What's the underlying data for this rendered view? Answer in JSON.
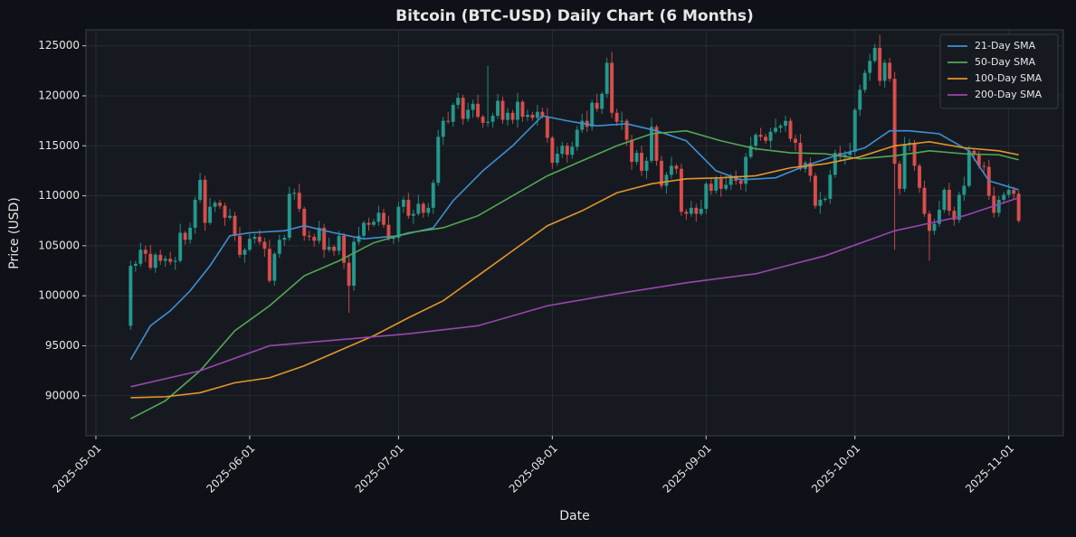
{
  "chart_data": {
    "type": "candlestick",
    "title": "Bitcoin (BTC-USD) Daily Chart (6 Months)",
    "x_label": "Date",
    "y_label": "Price (USD)",
    "x": [
      "2025-05-08",
      "2025-05-09",
      "2025-05-10",
      "2025-05-11",
      "2025-05-12",
      "2025-05-13",
      "2025-05-14",
      "2025-05-15",
      "2025-05-16",
      "2025-05-17",
      "2025-05-18",
      "2025-05-19",
      "2025-05-20",
      "2025-05-21",
      "2025-05-22",
      "2025-05-23",
      "2025-05-24",
      "2025-05-25",
      "2025-05-26",
      "2025-05-27",
      "2025-05-28",
      "2025-05-29",
      "2025-05-30",
      "2025-05-31",
      "2025-06-01",
      "2025-06-02",
      "2025-06-03",
      "2025-06-04",
      "2025-06-05",
      "2025-06-06",
      "2025-06-07",
      "2025-06-08",
      "2025-06-09",
      "2025-06-10",
      "2025-06-11",
      "2025-06-12",
      "2025-06-13",
      "2025-06-14",
      "2025-06-15",
      "2025-06-16",
      "2025-06-17",
      "2025-06-18",
      "2025-06-19",
      "2025-06-20",
      "2025-06-21",
      "2025-06-22",
      "2025-06-23",
      "2025-06-24",
      "2025-06-25",
      "2025-06-26",
      "2025-06-27",
      "2025-06-28",
      "2025-06-29",
      "2025-06-30",
      "2025-07-01",
      "2025-07-02",
      "2025-07-03",
      "2025-07-04",
      "2025-07-05",
      "2025-07-06",
      "2025-07-07",
      "2025-07-08",
      "2025-07-09",
      "2025-07-10",
      "2025-07-11",
      "2025-07-12",
      "2025-07-13",
      "2025-07-14",
      "2025-07-15",
      "2025-07-16",
      "2025-07-17",
      "2025-07-18",
      "2025-07-19",
      "2025-07-20",
      "2025-07-21",
      "2025-07-22",
      "2025-07-23",
      "2025-07-24",
      "2025-07-25",
      "2025-07-26",
      "2025-07-27",
      "2025-07-28",
      "2025-07-29",
      "2025-07-30",
      "2025-07-31",
      "2025-08-01",
      "2025-08-02",
      "2025-08-03",
      "2025-08-04",
      "2025-08-05",
      "2025-08-06",
      "2025-08-07",
      "2025-08-08",
      "2025-08-09",
      "2025-08-10",
      "2025-08-11",
      "2025-08-12",
      "2025-08-13",
      "2025-08-14",
      "2025-08-15",
      "2025-08-16",
      "2025-08-17",
      "2025-08-18",
      "2025-08-19",
      "2025-08-20",
      "2025-08-21",
      "2025-08-22",
      "2025-08-23",
      "2025-08-24",
      "2025-08-25",
      "2025-08-26",
      "2025-08-27",
      "2025-08-28",
      "2025-08-29",
      "2025-08-30",
      "2025-08-31",
      "2025-09-01",
      "2025-09-02",
      "2025-09-03",
      "2025-09-04",
      "2025-09-05",
      "2025-09-06",
      "2025-09-07",
      "2025-09-08",
      "2025-09-09",
      "2025-09-10",
      "2025-09-11",
      "2025-09-12",
      "2025-09-13",
      "2025-09-14",
      "2025-09-15",
      "2025-09-16",
      "2025-09-17",
      "2025-09-18",
      "2025-09-19",
      "2025-09-20",
      "2025-09-21",
      "2025-09-22",
      "2025-09-23",
      "2025-09-24",
      "2025-09-25",
      "2025-09-26",
      "2025-09-27",
      "2025-09-28",
      "2025-09-29",
      "2025-09-30",
      "2025-10-01",
      "2025-10-02",
      "2025-10-03",
      "2025-10-04",
      "2025-10-05",
      "2025-10-06",
      "2025-10-07",
      "2025-10-08",
      "2025-10-09",
      "2025-10-10",
      "2025-10-11",
      "2025-10-12",
      "2025-10-13",
      "2025-10-14",
      "2025-10-15",
      "2025-10-16",
      "2025-10-17",
      "2025-10-18",
      "2025-10-19",
      "2025-10-20",
      "2025-10-21",
      "2025-10-22",
      "2025-10-23",
      "2025-10-24",
      "2025-10-25",
      "2025-10-26",
      "2025-10-27",
      "2025-10-28",
      "2025-10-29",
      "2025-10-30",
      "2025-10-31",
      "2025-11-01",
      "2025-11-02",
      "2025-11-03"
    ],
    "open": [
      97000,
      103000,
      103200,
      104600,
      104200,
      102800,
      104100,
      103500,
      103700,
      103400,
      103500,
      106300,
      105600,
      106800,
      109600,
      111600,
      107300,
      108900,
      109300,
      109000,
      107800,
      108000,
      106000,
      104100,
      104600,
      105700,
      105900,
      105400,
      104700,
      101500,
      104200,
      105600,
      105800,
      110200,
      110300,
      108700,
      106000,
      105900,
      105500,
      106800,
      104600,
      104900,
      104500,
      106000,
      103300,
      101000,
      105400,
      106000,
      107300,
      107100,
      107400,
      108300,
      107100,
      105700,
      105800,
      108900,
      109600,
      108000,
      108200,
      109200,
      108300,
      108800,
      111300,
      115900,
      117500,
      117400,
      119100,
      119800,
      117700,
      118600,
      119200,
      117900,
      117300,
      117400,
      118000,
      119500,
      117600,
      118300,
      117600,
      119400,
      117900,
      118100,
      117800,
      118400,
      117900,
      115800,
      113300,
      114200,
      115000,
      114100,
      114900,
      116600,
      117500,
      116900,
      119300,
      118700,
      120200,
      123300,
      118300,
      117400,
      117500,
      115600,
      113400,
      114300,
      112500,
      113500,
      116900,
      113500,
      111000,
      112100,
      113000,
      112700,
      108400,
      108200,
      108800,
      108200,
      108700,
      111200,
      110500,
      111700,
      110700,
      111100,
      112000,
      111500,
      111200,
      113900,
      115000,
      116100,
      115900,
      115500,
      116400,
      116800,
      117000,
      117500,
      115700,
      115300,
      112700,
      113300,
      112000,
      109000,
      109600,
      109700,
      112100,
      114300,
      113900,
      114100,
      114400,
      118600,
      120600,
      122300,
      123500,
      124800,
      121500,
      123300,
      121700,
      113200,
      110700,
      115200,
      115300,
      113000,
      110800,
      108200,
      106500,
      107200,
      108600,
      110600,
      108500,
      107600,
      110100,
      111000,
      114500,
      114100,
      113000,
      112900,
      110000,
      108300,
      109600,
      110100,
      110600,
      110200
    ],
    "high": [
      103500,
      103500,
      105300,
      105000,
      105100,
      104300,
      104600,
      104000,
      104400,
      103900,
      107200,
      106500,
      107300,
      109900,
      112300,
      112000,
      109800,
      109500,
      109600,
      109300,
      108700,
      108400,
      106900,
      104800,
      106200,
      106200,
      106600,
      105800,
      105600,
      104400,
      106100,
      106100,
      110900,
      110700,
      111200,
      108900,
      106500,
      106200,
      107500,
      107200,
      105800,
      105100,
      106500,
      106300,
      104000,
      105800,
      106900,
      107500,
      107800,
      107700,
      109000,
      108700,
      108000,
      106000,
      109400,
      109900,
      110300,
      108600,
      110100,
      109400,
      109300,
      111600,
      116600,
      117900,
      118400,
      119300,
      120300,
      120100,
      119300,
      119600,
      120100,
      118100,
      123000,
      118300,
      120200,
      119900,
      118800,
      118600,
      120300,
      119600,
      118600,
      118400,
      119100,
      118800,
      118800,
      116000,
      114900,
      115400,
      115300,
      115400,
      117000,
      118200,
      118500,
      119600,
      120200,
      120400,
      123800,
      124400,
      118700,
      118400,
      117700,
      116100,
      114600,
      115000,
      113900,
      117800,
      117100,
      114000,
      112400,
      113900,
      113200,
      113200,
      108700,
      109500,
      109200,
      109600,
      111400,
      111700,
      112000,
      112100,
      112000,
      112200,
      112500,
      111800,
      114300,
      115900,
      116300,
      116800,
      116200,
      116800,
      117700,
      117200,
      118000,
      117800,
      116100,
      116200,
      113500,
      113800,
      112300,
      110400,
      109900,
      112600,
      114600,
      115000,
      114500,
      115300,
      118800,
      121100,
      122600,
      124200,
      125200,
      126100,
      123600,
      123800,
      122400,
      113500,
      115900,
      115700,
      115600,
      113200,
      111500,
      108500,
      107700,
      109500,
      110800,
      111300,
      108900,
      110400,
      111900,
      115000,
      114800,
      114500,
      113400,
      113600,
      110900,
      110000,
      110400,
      111200,
      110900,
      110500
    ],
    "low": [
      96600,
      102400,
      102900,
      103400,
      102600,
      102300,
      103100,
      102900,
      103100,
      102600,
      103300,
      105100,
      105200,
      106200,
      109300,
      106500,
      107100,
      108400,
      108700,
      107000,
      107600,
      105500,
      103800,
      103300,
      104400,
      105200,
      105100,
      103900,
      101300,
      101000,
      103800,
      105000,
      105500,
      109600,
      108400,
      105500,
      105500,
      104900,
      105200,
      103800,
      104400,
      104000,
      104100,
      102700,
      98300,
      100500,
      105100,
      105700,
      106500,
      106900,
      107000,
      106800,
      105500,
      105200,
      105400,
      108300,
      107700,
      107200,
      108000,
      107800,
      107900,
      108200,
      111000,
      115100,
      117200,
      116900,
      118700,
      117100,
      117400,
      117800,
      117700,
      116800,
      116900,
      116800,
      117700,
      117200,
      117000,
      117200,
      116800,
      117400,
      117500,
      117500,
      117000,
      117700,
      115300,
      112700,
      113000,
      113800,
      113300,
      113700,
      114500,
      116300,
      116400,
      116500,
      118400,
      118200,
      119800,
      117800,
      117000,
      116600,
      115000,
      112600,
      113100,
      112000,
      111700,
      113300,
      113000,
      110700,
      110200,
      111700,
      112200,
      108000,
      107600,
      107900,
      107400,
      108000,
      108200,
      110100,
      110200,
      109900,
      110500,
      110600,
      111100,
      110600,
      110400,
      113700,
      114500,
      115500,
      115200,
      114700,
      116200,
      116300,
      116400,
      115400,
      114500,
      112500,
      112300,
      111400,
      108700,
      108200,
      109400,
      109200,
      111800,
      113500,
      113100,
      113900,
      114000,
      118000,
      120300,
      121500,
      123300,
      121000,
      120800,
      121400,
      104600,
      110100,
      110400,
      114500,
      112500,
      110300,
      107900,
      103500,
      106100,
      106900,
      108300,
      108000,
      107000,
      107300,
      109500,
      110800,
      113500,
      112700,
      112100,
      109600,
      107800,
      107900,
      109200,
      109800,
      109700,
      107300
    ],
    "close": [
      103000,
      103200,
      104600,
      104200,
      102800,
      104100,
      103500,
      103700,
      103400,
      103500,
      106300,
      105600,
      106800,
      109600,
      111600,
      107300,
      108900,
      109300,
      109000,
      107800,
      108000,
      106000,
      104100,
      104600,
      105700,
      105900,
      105400,
      104700,
      101500,
      104200,
      105600,
      105800,
      110200,
      110300,
      108700,
      106000,
      105900,
      105500,
      106800,
      104600,
      104900,
      104500,
      106000,
      103300,
      101000,
      105400,
      106000,
      107300,
      107100,
      107400,
      108300,
      107100,
      105700,
      105800,
      108900,
      109600,
      108000,
      108200,
      109200,
      108300,
      108800,
      111300,
      115900,
      117500,
      117400,
      119100,
      119800,
      117700,
      118600,
      119200,
      117900,
      117300,
      117400,
      118000,
      119500,
      117600,
      118300,
      117600,
      119400,
      117900,
      118100,
      117800,
      118400,
      117900,
      115800,
      113300,
      114200,
      115000,
      114100,
      114900,
      116600,
      117500,
      116900,
      119300,
      118700,
      120200,
      123300,
      118300,
      117400,
      117500,
      115600,
      113400,
      114300,
      112500,
      113500,
      116900,
      113500,
      111000,
      112100,
      113000,
      112700,
      108400,
      108200,
      108800,
      108200,
      108700,
      111200,
      110500,
      111700,
      110700,
      111100,
      112000,
      111500,
      111200,
      113900,
      115000,
      116100,
      115900,
      115500,
      116400,
      116800,
      117000,
      117500,
      115700,
      115300,
      112700,
      113300,
      112000,
      109000,
      109600,
      109700,
      112100,
      114300,
      113900,
      114100,
      114400,
      118600,
      120600,
      122300,
      123500,
      124800,
      121500,
      123300,
      121700,
      113200,
      110700,
      115200,
      115300,
      113000,
      110800,
      108200,
      106500,
      107200,
      108600,
      110600,
      108500,
      107600,
      110100,
      111000,
      114500,
      114100,
      113000,
      112900,
      110000,
      108300,
      109600,
      110100,
      110600,
      110200,
      107500
    ],
    "up_color": "#26a69a",
    "down_color": "#ef5350",
    "series": [
      {
        "name": "21-Day SMA",
        "color": "#3f8fd2",
        "x": [
          "2025-05-08",
          "2025-05-12",
          "2025-05-16",
          "2025-05-20",
          "2025-05-24",
          "2025-05-28",
          "2025-06-01",
          "2025-06-08",
          "2025-06-12",
          "2025-06-18",
          "2025-06-24",
          "2025-07-01",
          "2025-07-08",
          "2025-07-12",
          "2025-07-18",
          "2025-07-24",
          "2025-07-30",
          "2025-08-04",
          "2025-08-10",
          "2025-08-16",
          "2025-08-22",
          "2025-08-28",
          "2025-09-03",
          "2025-09-08",
          "2025-09-15",
          "2025-09-21",
          "2025-09-27",
          "2025-10-03",
          "2025-10-08",
          "2025-10-12",
          "2025-10-18",
          "2025-10-24",
          "2025-10-28",
          "2025-11-03"
        ],
        "values": [
          93600,
          97000,
          98500,
          100500,
          103000,
          106000,
          106300,
          106500,
          107000,
          106300,
          105700,
          106000,
          106800,
          109500,
          112500,
          115000,
          118000,
          117500,
          117000,
          117200,
          116500,
          115500,
          112500,
          111600,
          111800,
          113000,
          114000,
          114800,
          116500,
          116500,
          116200,
          114500,
          111500,
          110600
        ]
      },
      {
        "name": "50-Day SMA",
        "color": "#52a852",
        "x": [
          "2025-05-08",
          "2025-05-15",
          "2025-05-22",
          "2025-05-29",
          "2025-06-05",
          "2025-06-12",
          "2025-06-19",
          "2025-06-26",
          "2025-07-03",
          "2025-07-10",
          "2025-07-17",
          "2025-07-24",
          "2025-07-31",
          "2025-08-07",
          "2025-08-14",
          "2025-08-21",
          "2025-08-28",
          "2025-09-04",
          "2025-09-11",
          "2025-09-18",
          "2025-09-25",
          "2025-10-02",
          "2025-10-09",
          "2025-10-16",
          "2025-10-23",
          "2025-10-30",
          "2025-11-03"
        ],
        "values": [
          87700,
          89500,
          92500,
          96500,
          99000,
          102000,
          103500,
          105300,
          106300,
          106800,
          108000,
          110000,
          112000,
          113500,
          115000,
          116200,
          116500,
          115500,
          114700,
          114300,
          114200,
          113700,
          114000,
          114500,
          114200,
          114100,
          113600
        ]
      },
      {
        "name": "100-Day SMA",
        "color": "#e3952b",
        "x": [
          "2025-05-08",
          "2025-05-15",
          "2025-05-22",
          "2025-05-29",
          "2025-06-05",
          "2025-06-12",
          "2025-06-19",
          "2025-06-26",
          "2025-07-03",
          "2025-07-10",
          "2025-07-17",
          "2025-07-24",
          "2025-07-31",
          "2025-08-07",
          "2025-08-14",
          "2025-08-21",
          "2025-08-28",
          "2025-09-04",
          "2025-09-11",
          "2025-09-18",
          "2025-09-25",
          "2025-10-02",
          "2025-10-09",
          "2025-10-16",
          "2025-10-23",
          "2025-10-30",
          "2025-11-03"
        ],
        "values": [
          89800,
          89900,
          90300,
          91300,
          91800,
          93000,
          94500,
          96000,
          97800,
          99500,
          102000,
          104500,
          107000,
          108500,
          110300,
          111200,
          111700,
          111800,
          112000,
          112800,
          113200,
          113900,
          115000,
          115400,
          114800,
          114500,
          114100
        ]
      },
      {
        "name": "200-Day SMA",
        "color": "#9a45b0",
        "x": [
          "2025-05-08",
          "2025-05-22",
          "2025-06-05",
          "2025-06-19",
          "2025-07-03",
          "2025-07-17",
          "2025-07-31",
          "2025-08-14",
          "2025-08-28",
          "2025-09-11",
          "2025-09-25",
          "2025-10-09",
          "2025-10-23",
          "2025-11-03"
        ],
        "values": [
          90900,
          92500,
          95000,
          95600,
          96200,
          97000,
          99000,
          100200,
          101300,
          102200,
          104000,
          106500,
          108000,
          109800
        ]
      }
    ],
    "xlim": [
      "2025-04-29",
      "2025-11-12"
    ],
    "ylim": [
      86000,
      126600
    ],
    "xticks": [
      "2025-05-01",
      "2025-06-01",
      "2025-07-01",
      "2025-08-01",
      "2025-09-01",
      "2025-10-01",
      "2025-11-01"
    ],
    "yticks": [
      90000,
      95000,
      100000,
      105000,
      110000,
      115000,
      120000,
      125000
    ],
    "grid": true,
    "legend": "upper right"
  }
}
